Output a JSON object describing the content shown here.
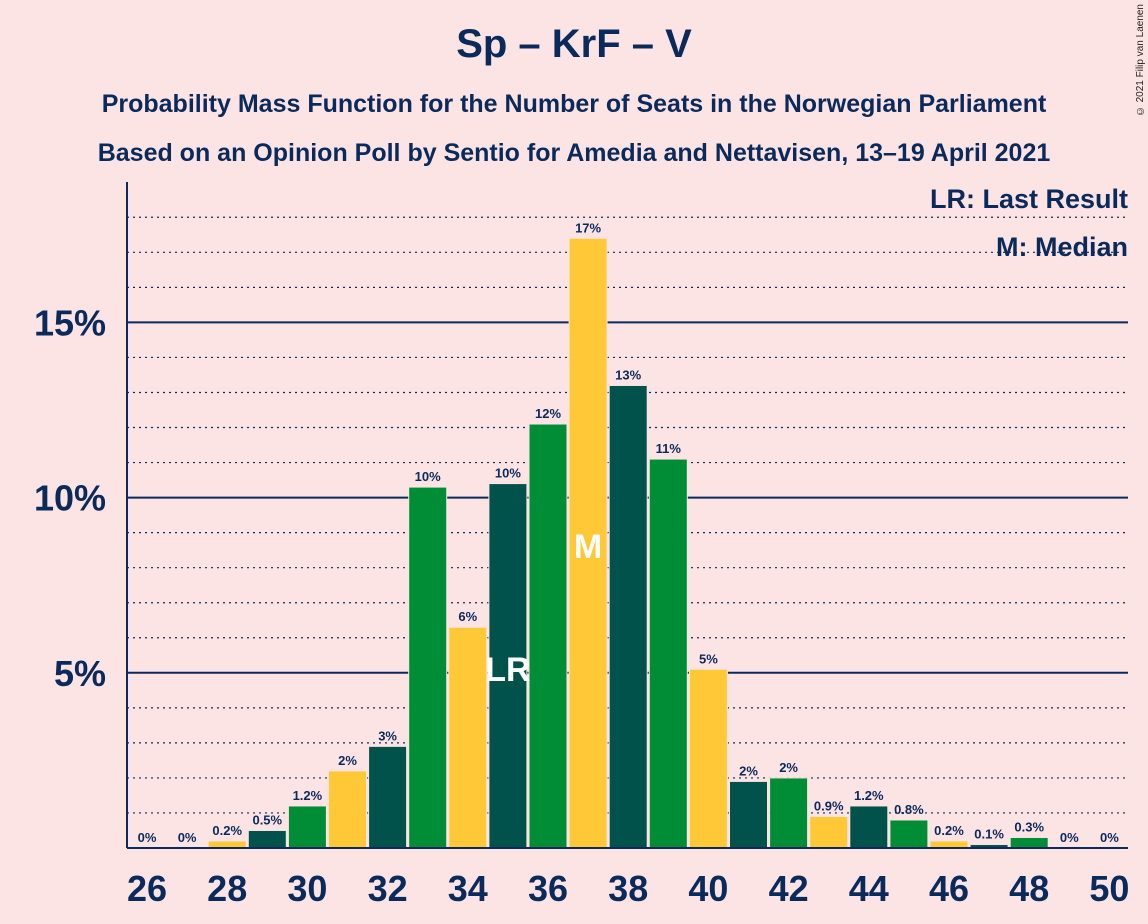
{
  "title": "Sp – KrF – V",
  "subtitle1": "Probability Mass Function for the Number of Seats in the Norwegian Parliament",
  "subtitle2": "Based on an Opinion Poll by Sentio for Amedia and Nettavisen, 13–19 April 2021",
  "copyright": "© 2021 Filip van Laenen",
  "legend": {
    "lr": "LR: Last Result",
    "m": "M: Median"
  },
  "colors": {
    "background": "#FDE4E4",
    "axis": "#0A2A5C",
    "sp": "#008D36",
    "krf": "#FFC837",
    "v": "#00524A"
  },
  "chart_data": {
    "type": "bar",
    "x": [
      26,
      27,
      28,
      29,
      30,
      31,
      32,
      33,
      34,
      35,
      36,
      37,
      38,
      39,
      40,
      41,
      42,
      43,
      44,
      45,
      46,
      47,
      48,
      49,
      50
    ],
    "values": [
      0,
      0,
      0.2,
      0.5,
      1.2,
      2.2,
      2.9,
      10.3,
      6.3,
      10.4,
      12.1,
      17.4,
      13.2,
      11.1,
      5.1,
      1.9,
      2.0,
      0.9,
      1.2,
      0.8,
      0.2,
      0.1,
      0.3,
      0,
      0
    ],
    "labels": [
      "0%",
      "0%",
      "0.2%",
      "0.5%",
      "1.2%",
      "2%",
      "3%",
      "10%",
      "6%",
      "10%",
      "12%",
      "17%",
      "13%",
      "11%",
      "5%",
      "2%",
      "2%",
      "0.9%",
      "1.2%",
      "0.8%",
      "0.2%",
      "0.1%",
      "0.3%",
      "0%",
      "0%"
    ],
    "bar_colors": [
      "sp",
      "krf",
      "krf",
      "v",
      "sp",
      "krf",
      "v",
      "sp",
      "krf",
      "v",
      "sp",
      "krf",
      "v",
      "sp",
      "krf",
      "v",
      "sp",
      "krf",
      "v",
      "sp",
      "krf",
      "v",
      "sp",
      "krf",
      "v"
    ],
    "x_ticks": [
      "26",
      "28",
      "30",
      "32",
      "34",
      "36",
      "38",
      "40",
      "42",
      "44",
      "46",
      "48",
      "50"
    ],
    "y_ticks": [
      "5%",
      "10%",
      "15%"
    ],
    "y_tick_values": [
      5,
      10,
      15
    ],
    "minor_grid_step": 1,
    "ylim": [
      0,
      19
    ],
    "last_result_seat": 35,
    "last_result_marker": "LR",
    "median_seat": 37,
    "median_marker": "M"
  }
}
